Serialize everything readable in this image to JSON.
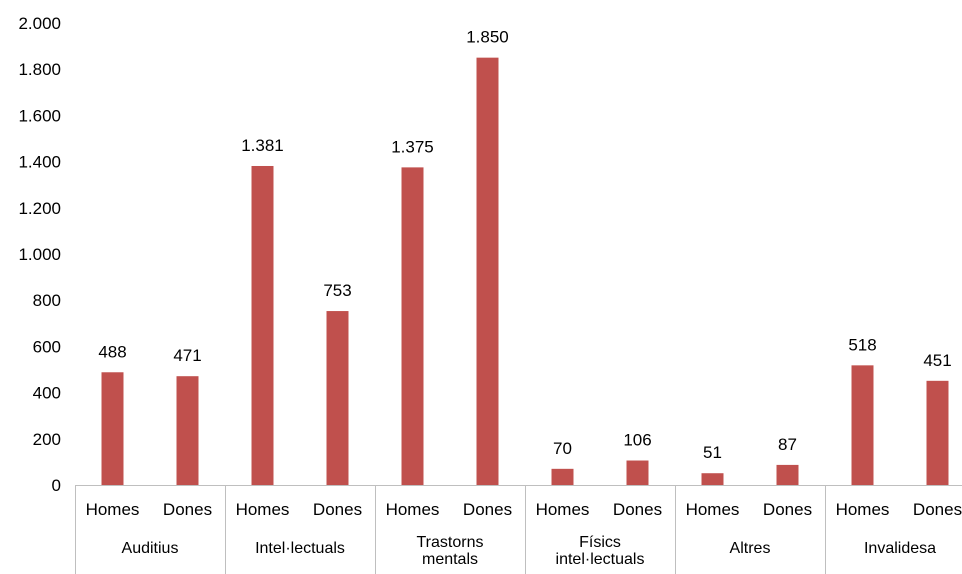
{
  "chart_data": {
    "type": "bar",
    "ylim": [
      0,
      2000
    ],
    "yticks": [
      0,
      200,
      400,
      600,
      800,
      1000,
      1200,
      1400,
      1600,
      1800,
      2000
    ],
    "ytick_labels": [
      "0",
      "200",
      "400",
      "600",
      "800",
      "1.000",
      "1.200",
      "1.400",
      "1.600",
      "1.800",
      "2.000"
    ],
    "grid": false,
    "legend": "none",
    "bar_color": "#c0504d",
    "groups": [
      {
        "label_lines": [
          "Auditius"
        ],
        "categories": [
          "Homes",
          "Dones"
        ],
        "values": [
          488,
          471
        ],
        "value_labels": [
          "488",
          "471"
        ]
      },
      {
        "label_lines": [
          "Intel·lectuals"
        ],
        "categories": [
          "Homes",
          "Dones"
        ],
        "values": [
          1381,
          753
        ],
        "value_labels": [
          "1.381",
          "753"
        ]
      },
      {
        "label_lines": [
          "Trastorns",
          "mentals"
        ],
        "categories": [
          "Homes",
          "Dones"
        ],
        "values": [
          1375,
          1850
        ],
        "value_labels": [
          "1.375",
          "1.850"
        ]
      },
      {
        "label_lines": [
          "Físics",
          "intel·lectuals"
        ],
        "categories": [
          "Homes",
          "Dones"
        ],
        "values": [
          70,
          106
        ],
        "value_labels": [
          "70",
          "106"
        ]
      },
      {
        "label_lines": [
          "Altres"
        ],
        "categories": [
          "Homes",
          "Dones"
        ],
        "values": [
          51,
          87
        ],
        "value_labels": [
          "51",
          "87"
        ]
      },
      {
        "label_lines": [
          "Invalidesa"
        ],
        "categories": [
          "Homes",
          "Dones"
        ],
        "values": [
          518,
          451
        ],
        "value_labels": [
          "518",
          "451"
        ]
      }
    ]
  }
}
